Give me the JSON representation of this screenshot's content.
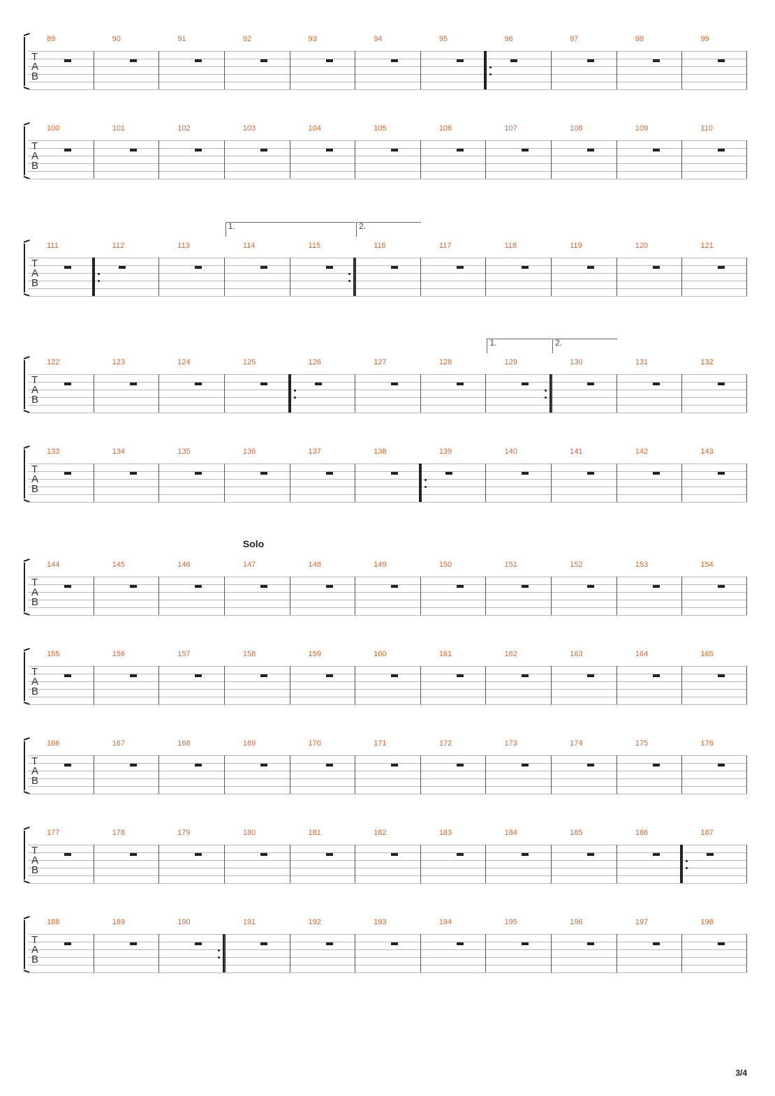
{
  "tab_letters": [
    "T",
    "A",
    "B"
  ],
  "systems": [
    {
      "measures": [
        89,
        90,
        91,
        92,
        93,
        94,
        95,
        96,
        97,
        98,
        99
      ],
      "repeat_starts": [
        96
      ],
      "repeat_ends": [],
      "voltas": [],
      "section": ""
    },
    {
      "measures": [
        100,
        101,
        102,
        103,
        104,
        105,
        106,
        107,
        108,
        109,
        110
      ],
      "repeat_starts": [],
      "repeat_ends": [],
      "voltas": [],
      "section": ""
    },
    {
      "measures": [
        111,
        112,
        113,
        114,
        115,
        116,
        117,
        118,
        119,
        120,
        121
      ],
      "repeat_starts": [
        112
      ],
      "repeat_ends": [
        115
      ],
      "voltas": [
        {
          "label": "1.",
          "measure": 114,
          "span": 2
        },
        {
          "label": "2.",
          "measure": 116,
          "span": 1
        }
      ],
      "section": ""
    },
    {
      "measures": [
        122,
        123,
        124,
        125,
        126,
        127,
        128,
        129,
        130,
        131,
        132
      ],
      "repeat_starts": [
        126
      ],
      "repeat_ends": [
        129
      ],
      "voltas": [
        {
          "label": "1.",
          "measure": 129,
          "span": 1
        },
        {
          "label": "2.",
          "measure": 130,
          "span": 1
        }
      ],
      "section": ""
    },
    {
      "measures": [
        133,
        134,
        135,
        136,
        137,
        138,
        139,
        140,
        141,
        142,
        143
      ],
      "repeat_starts": [
        139
      ],
      "repeat_ends": [],
      "voltas": [],
      "section": ""
    },
    {
      "measures": [
        144,
        145,
        146,
        147,
        148,
        149,
        150,
        151,
        152,
        153,
        154
      ],
      "repeat_starts": [],
      "repeat_ends": [],
      "voltas": [],
      "section": "Solo"
    },
    {
      "measures": [
        155,
        156,
        157,
        158,
        159,
        160,
        161,
        162,
        163,
        164,
        165
      ],
      "repeat_starts": [],
      "repeat_ends": [],
      "voltas": [],
      "section": ""
    },
    {
      "measures": [
        166,
        167,
        168,
        169,
        170,
        171,
        172,
        173,
        174,
        175,
        176
      ],
      "repeat_starts": [],
      "repeat_ends": [],
      "voltas": [],
      "section": ""
    },
    {
      "measures": [
        177,
        178,
        179,
        180,
        181,
        182,
        183,
        184,
        185,
        186,
        187
      ],
      "repeat_starts": [
        187
      ],
      "repeat_ends": [],
      "voltas": [],
      "section": ""
    },
    {
      "measures": [
        188,
        189,
        190,
        191,
        192,
        193,
        194,
        195,
        196,
        197,
        198
      ],
      "repeat_starts": [],
      "repeat_ends": [
        190
      ],
      "voltas": [],
      "section": ""
    }
  ],
  "page_number": "3/4",
  "colors": {
    "measure_number": "#e8632a",
    "staff_line": "#b9b9b9",
    "ink": "#222222"
  }
}
